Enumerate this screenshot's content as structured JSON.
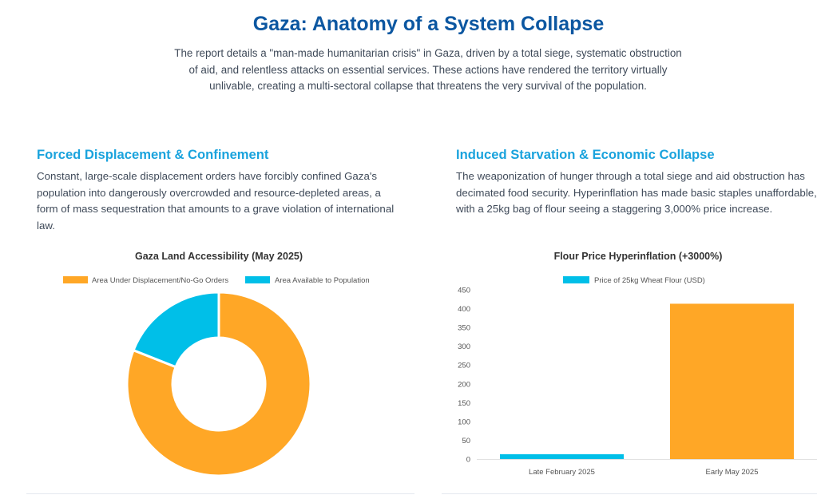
{
  "header": {
    "title": "Gaza: Anatomy of a System Collapse",
    "intro": "The report details a \"man-made humanitarian crisis\" in Gaza, driven by a total siege, systematic obstruction of aid, and relentless attacks on essential services. These actions have rendered the territory virtually unlivable, creating a multi-sectoral collapse that threatens the very survival of the population."
  },
  "sections": {
    "left": {
      "title": "Forced Displacement & Confinement",
      "body": "Constant, large-scale displacement orders have forcibly confined Gaza's population into dangerously overcrowded and resource-depleted areas, a form of mass sequestration that amounts to a grave violation of international law."
    },
    "right": {
      "title": "Induced Starvation & Economic Collapse",
      "body": "The weaponization of hunger through a total siege and aid obstruction has decimated food security. Hyperinflation has made basic staples unaffordable, with a 25kg bag of flour seeing a staggering 3,000% price increase."
    }
  },
  "colors": {
    "orange": "#ffa726",
    "cyan": "#00bfe8"
  },
  "chart_data": [
    {
      "type": "pie",
      "variant": "doughnut",
      "title": "Gaza Land Accessibility (May 2025)",
      "labels": [
        "Area Under Displacement/No-Go Orders",
        "Area Available to Population"
      ],
      "values": [
        81,
        19
      ],
      "colors": [
        "#ffa726",
        "#00bfe8"
      ],
      "legend": "top"
    },
    {
      "type": "bar",
      "title": "Flour Price Hyperinflation (+3000%)",
      "categories": [
        "Late February 2025",
        "Early May 2025"
      ],
      "series": [
        {
          "name": "Price of 25kg Wheat Flour (USD)",
          "values": [
            13,
            413
          ],
          "colors": [
            "#00bfe8",
            "#ffa726"
          ]
        }
      ],
      "ylim": [
        0,
        450
      ],
      "yticks": [
        "0",
        "50",
        "100",
        "150",
        "200",
        "250",
        "300",
        "350",
        "400",
        "450"
      ],
      "legend": "top",
      "xlabel": "",
      "ylabel": ""
    }
  ]
}
